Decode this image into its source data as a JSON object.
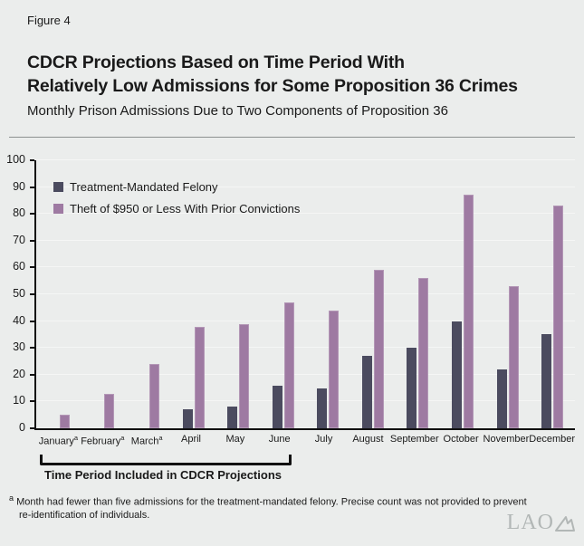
{
  "header": {
    "figure_label": "Figure 4",
    "title_line1": "CDCR Projections Based on Time Period With",
    "title_line2": "Relatively Low Admissions for Some Proposition 36 Crimes",
    "subtitle": "Monthly Prison Admissions Due to Two Components of Proposition 36"
  },
  "chart_data": {
    "type": "bar",
    "categories": [
      "January",
      "February",
      "March",
      "April",
      "May",
      "June",
      "July",
      "August",
      "September",
      "October",
      "November",
      "December"
    ],
    "series": [
      {
        "name": "Treatment-Mandated Felony",
        "color": "#4b4b5f",
        "values": [
          null,
          null,
          null,
          7,
          8,
          16,
          15,
          27,
          30,
          40,
          22,
          35
        ]
      },
      {
        "name": "Theft of $950 or Less With Prior Convictions",
        "color": "#9e7aa2",
        "values": [
          5,
          13,
          24,
          38,
          39,
          47,
          44,
          59,
          56,
          87,
          53,
          83
        ]
      }
    ],
    "ylim": [
      0,
      100
    ],
    "yticks": [
      0,
      10,
      20,
      30,
      40,
      50,
      60,
      70,
      80,
      90,
      100
    ],
    "footnote_months": [
      "January",
      "February",
      "March"
    ],
    "xlabel": "",
    "ylabel": "",
    "grid": true,
    "legend_position": "top-left"
  },
  "bracket": {
    "label": "Time Period Included in CDCR Projections"
  },
  "footnote": {
    "marker": "a",
    "lines": [
      "Month had fewer than five admissions for the treatment-mandated felony. Precise count was not provided to prevent",
      "re-identification of individuals."
    ]
  },
  "logo": {
    "text": "LAO"
  },
  "colors": {
    "background": "#ebedec",
    "dark_bar": "#4b4b5f",
    "mauve_bar": "#9e7aa2",
    "axis": "#111111",
    "gridline": "#f5f6f5",
    "rule": "#8d9291",
    "logo_gray": "#b2b7b6"
  }
}
